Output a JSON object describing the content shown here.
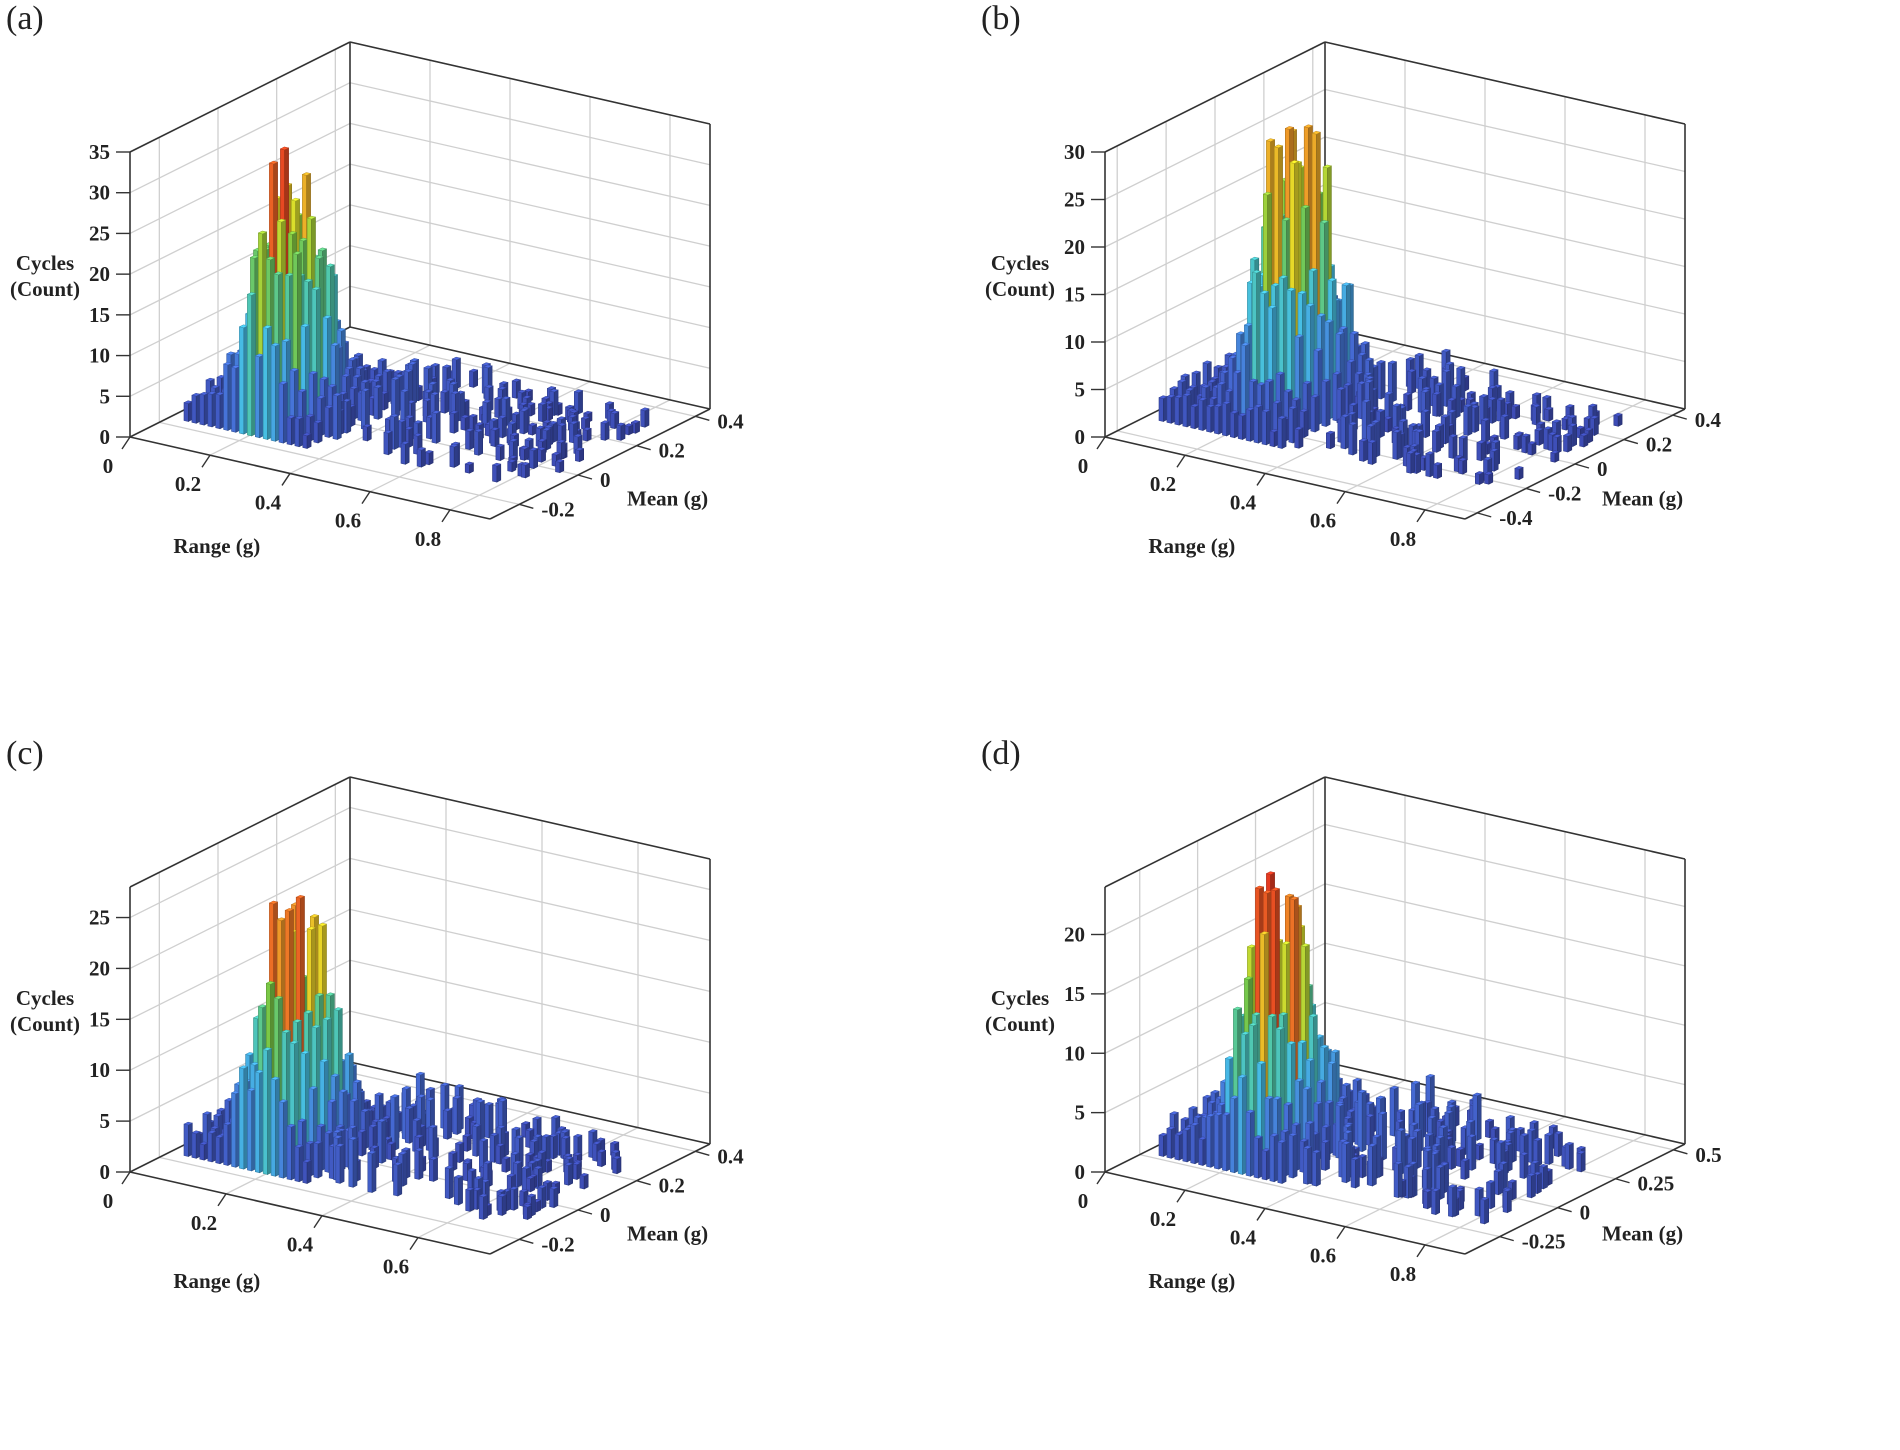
{
  "chart_data": [
    {
      "type": "bar3d",
      "panel_label": "(a)",
      "zlabel": [
        "Cycles",
        "(Count)"
      ],
      "xlabel": "Range (g)",
      "ylabel": "Mean (g)",
      "xlim": [
        0,
        0.9
      ],
      "ylim": [
        -0.3,
        0.45
      ],
      "zlim": [
        0,
        35
      ],
      "xticks": [
        "0",
        "0.2",
        "0.4",
        "0.6",
        "0.8"
      ],
      "yticks": [
        "-0.2",
        "0",
        "0.2",
        "0.4"
      ],
      "zticks": [
        "0",
        "5",
        "10",
        "15",
        "20",
        "25",
        "30",
        "35"
      ],
      "peak": {
        "range": 0.2,
        "mean": -0.05,
        "count": 35
      },
      "tail_max_range": 0.85,
      "seed": 11
    },
    {
      "type": "bar3d",
      "panel_label": "(b)",
      "zlabel": [
        "Cycles",
        "(Count)"
      ],
      "xlabel": "Range (g)",
      "ylabel": "Mean (g)",
      "xlim": [
        0,
        0.9
      ],
      "ylim": [
        -0.45,
        0.45
      ],
      "zlim": [
        0,
        30
      ],
      "xticks": [
        "0",
        "0.2",
        "0.4",
        "0.6",
        "0.8"
      ],
      "yticks": [
        "-0.4",
        "-0.2",
        "0",
        "0.2",
        "0.4"
      ],
      "zticks": [
        "0",
        "5",
        "10",
        "15",
        "20",
        "25",
        "30"
      ],
      "peak": {
        "range": 0.22,
        "mean": -0.05,
        "count": 35
      },
      "tail_max_range": 0.85,
      "seed": 23
    },
    {
      "type": "bar3d",
      "panel_label": "(c)",
      "zlabel": [
        "Cycles",
        "(Count)"
      ],
      "xlabel": "Range (g)",
      "ylabel": "Mean (g)",
      "xlim": [
        0,
        0.75
      ],
      "ylim": [
        -0.3,
        0.45
      ],
      "zlim": [
        0,
        28
      ],
      "xticks": [
        "0",
        "0.2",
        "0.4",
        "0.6"
      ],
      "yticks": [
        "-0.2",
        "0",
        "0.2",
        "0.4"
      ],
      "zticks": [
        "0",
        "5",
        "10",
        "15",
        "20",
        "25"
      ],
      "peak": {
        "range": 0.18,
        "mean": -0.05,
        "count": 28
      },
      "tail_max_range": 0.7,
      "seed": 37
    },
    {
      "type": "bar3d",
      "panel_label": "(d)",
      "zlabel": [
        "Cycles",
        "(Count)"
      ],
      "xlabel": "Range (g)",
      "ylabel": "Mean (g)",
      "xlim": [
        0,
        0.9
      ],
      "ylim": [
        -0.4,
        0.55
      ],
      "zlim": [
        0,
        24
      ],
      "xticks": [
        "0",
        "0.2",
        "0.4",
        "0.6",
        "0.8"
      ],
      "yticks": [
        "-0.25",
        "0",
        "0.25",
        "0.5"
      ],
      "zticks": [
        "0",
        "5",
        "10",
        "15",
        "20"
      ],
      "peak": {
        "range": 0.22,
        "mean": -0.05,
        "count": 24
      },
      "tail_max_range": 0.82,
      "seed": 53
    }
  ]
}
